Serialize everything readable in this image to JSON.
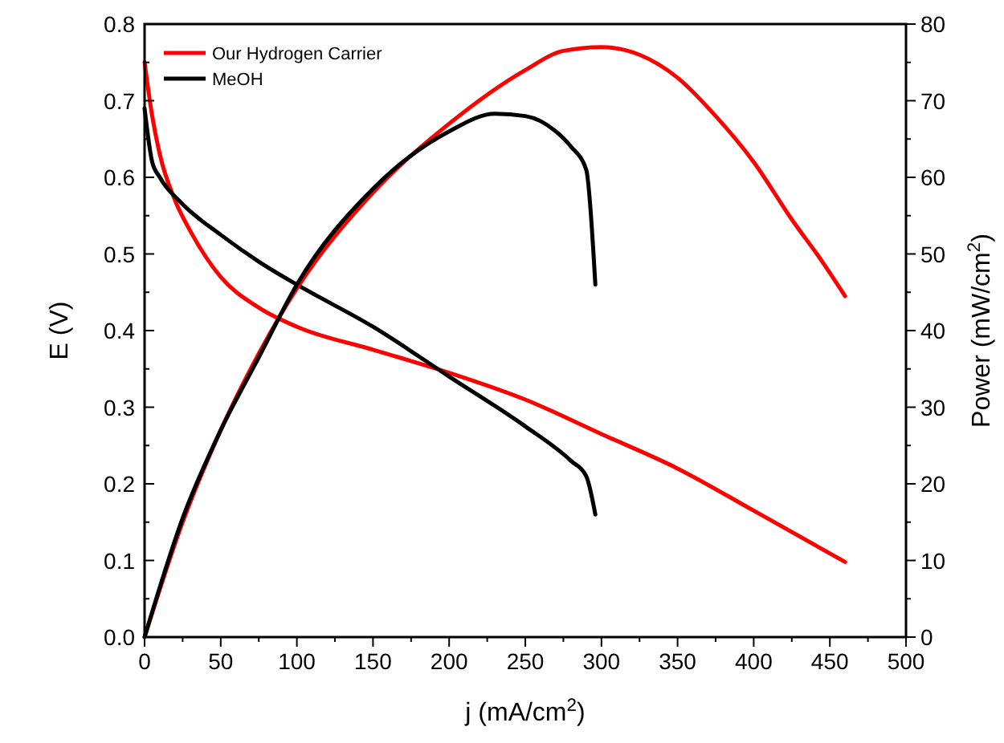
{
  "chart_data": {
    "type": "line",
    "xlabel": "j (mA/cm$^{2}$)",
    "ylabel": "E (V)",
    "y2label": "Power (mW/cm$^{2}$)",
    "xlim": [
      0,
      500
    ],
    "xticks": [
      0,
      50,
      100,
      150,
      200,
      250,
      300,
      350,
      400,
      450,
      500
    ],
    "ylim": [
      0,
      0.8
    ],
    "yticks": [
      {
        "value": 0,
        "label": "0.0"
      },
      0.1,
      0.2,
      0.3,
      0.4,
      0.5,
      0.6,
      0.7,
      0.8
    ],
    "y2lim": [
      0,
      80
    ],
    "y2ticks": [
      0,
      10,
      20,
      30,
      40,
      50,
      60,
      70,
      80
    ],
    "legend": "top left",
    "grid": false,
    "line_style": "solid",
    "marker": "none",
    "series": [
      {
        "name": "Our Hydrogen Carrier",
        "color": "#ff0000",
        "x": [
          0,
          5,
          10,
          20,
          30,
          50,
          75,
          100,
          150,
          200,
          250,
          300,
          350,
          400,
          460
        ],
        "values": [
          0.75,
          0.68,
          0.63,
          0.57,
          0.53,
          0.47,
          0.43,
          0.405,
          0.375,
          0.345,
          0.31,
          0.265,
          0.22,
          0.165,
          0.098
        ]
      },
      {
        "name": "MeOH",
        "color": "#000000",
        "x": [
          0,
          5,
          10,
          25,
          50,
          75,
          100,
          150,
          200,
          250,
          280,
          290,
          296
        ],
        "values": [
          0.69,
          0.62,
          0.6,
          0.565,
          0.525,
          0.49,
          0.46,
          0.405,
          0.34,
          0.275,
          0.23,
          0.21,
          0.16
        ]
      },
      {
        "color": "#ff0000",
        "axis": "y2",
        "x": [
          0,
          25,
          50,
          75,
          100,
          150,
          200,
          250,
          275,
          300,
          325,
          350,
          375,
          400,
          425,
          445,
          460
        ],
        "values": [
          0,
          15,
          27,
          37,
          45.5,
          58,
          67,
          74,
          76.5,
          77,
          76,
          73,
          68,
          62,
          54.5,
          49,
          44.5
        ]
      },
      {
        "color": "#000000",
        "axis": "y2",
        "x": [
          0,
          25,
          50,
          75,
          100,
          150,
          200,
          230,
          250,
          270,
          280,
          290,
          296
        ],
        "values": [
          0,
          15.5,
          27,
          36.5,
          46,
          58.5,
          66,
          68.3,
          68,
          66,
          64,
          61,
          46
        ]
      }
    ]
  }
}
